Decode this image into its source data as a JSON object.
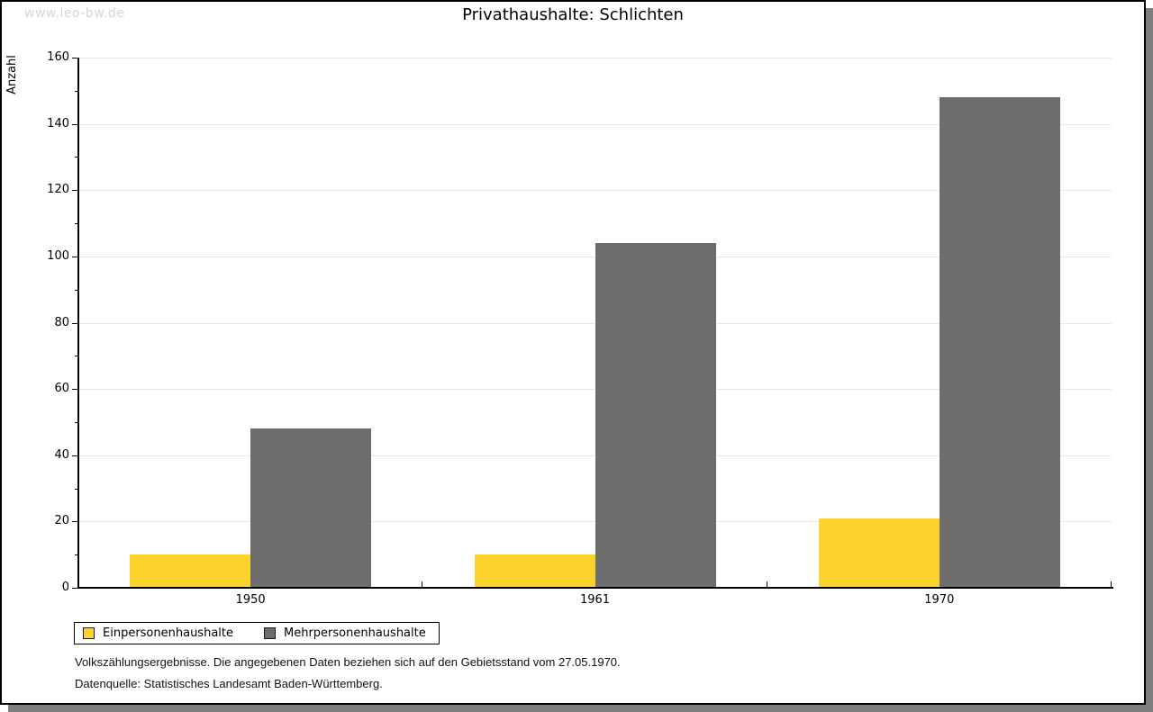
{
  "watermark": "www.leo-bw.de",
  "title": "Privathaushalte: Schlichten",
  "chart_data": {
    "type": "bar",
    "title": "Privathaushalte: Schlichten",
    "categories": [
      "1950",
      "1961",
      "1970"
    ],
    "series": [
      {
        "name": "Einpersonenhaushalte",
        "color": "#fcd32d",
        "values": [
          10,
          10,
          21
        ]
      },
      {
        "name": "Mehrpersonenhaushalte",
        "color": "#6d6d6d",
        "values": [
          48,
          104,
          148
        ]
      }
    ],
    "xlabel": "",
    "ylabel": "Anzahl",
    "ylim": [
      0,
      160
    ],
    "ytick_step": 20,
    "yminor_step": 10,
    "grid": true,
    "legend_position": "bottom-left"
  },
  "footer": {
    "line1": "Volkszählungsergebnisse. Die angegebenen Daten beziehen sich auf den Gebietsstand vom 27.05.1970.",
    "line2": "Datenquelle: Statistisches Landesamt Baden-Württemberg."
  }
}
